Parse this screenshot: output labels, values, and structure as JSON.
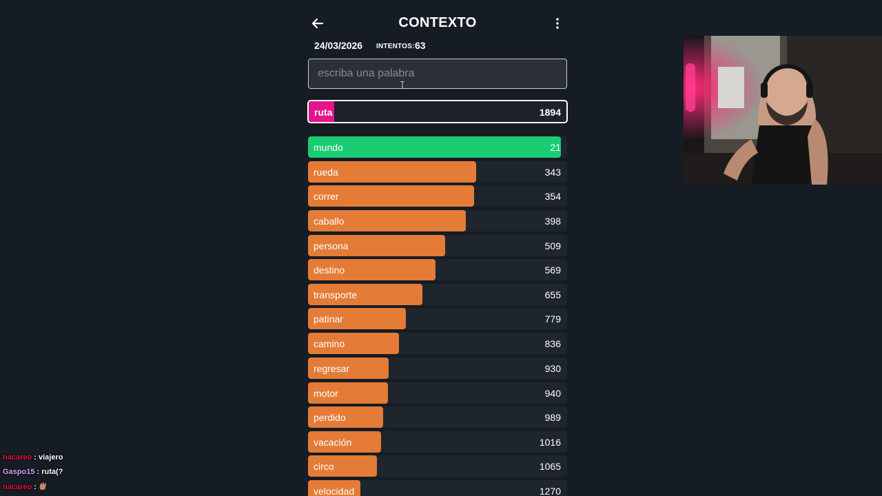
{
  "header": {
    "title": "CONTEXTO",
    "back_icon": "arrow-left-icon",
    "menu_icon": "kebab-menu-icon"
  },
  "game_info": {
    "date": "24/03/2026",
    "attempts_label": "INTENTOS:",
    "attempts_value": "63"
  },
  "input": {
    "value": "",
    "placeholder": "escriba una palabra"
  },
  "current_guess": {
    "word": "ruta",
    "rank": "1894",
    "color": "#e5148a",
    "fill": 0.1
  },
  "colors": {
    "green": "#19cc72",
    "orange": "#e47b36",
    "pink": "#e5148a",
    "background": "#161c24",
    "row_background": "#1f252d"
  },
  "guesses": [
    {
      "word": "mundo",
      "rank": "21",
      "tier": "green",
      "fill": 0.976
    },
    {
      "word": "rueda",
      "rank": "343",
      "tier": "orange",
      "fill": 0.649
    },
    {
      "word": "correr",
      "rank": "354",
      "tier": "orange",
      "fill": 0.641
    },
    {
      "word": "caballo",
      "rank": "398",
      "tier": "orange",
      "fill": 0.608
    },
    {
      "word": "persona",
      "rank": "509",
      "tier": "orange",
      "fill": 0.529
    },
    {
      "word": "destino",
      "rank": "569",
      "tier": "orange",
      "fill": 0.492
    },
    {
      "word": "transporte",
      "rank": "655",
      "tier": "orange",
      "fill": 0.441
    },
    {
      "word": "patinar",
      "rank": "779",
      "tier": "orange",
      "fill": 0.378
    },
    {
      "word": "camino",
      "rank": "836",
      "tier": "orange",
      "fill": 0.35
    },
    {
      "word": "regresar",
      "rank": "930",
      "tier": "orange",
      "fill": 0.311
    },
    {
      "word": "motor",
      "rank": "940",
      "tier": "orange",
      "fill": 0.309
    },
    {
      "word": "perdido",
      "rank": "989",
      "tier": "orange",
      "fill": 0.291
    },
    {
      "word": "vacación",
      "rank": "1016",
      "tier": "orange",
      "fill": 0.281
    },
    {
      "word": "circo",
      "rank": "1065",
      "tier": "orange",
      "fill": 0.266
    },
    {
      "word": "velocidad",
      "rank": "1270",
      "tier": "orange",
      "fill": 0.202
    }
  ],
  "chat": [
    {
      "user": "nacareo",
      "separator": " : ",
      "message": "viajero",
      "user_color": "#e8103a"
    },
    {
      "user": "Gaspo15",
      "separator": " : ",
      "message": "ruta(?",
      "user_color": "#d9a3ff"
    },
    {
      "user": "nacareo",
      "separator": " : ",
      "message": "",
      "user_color": "#e8103a",
      "emote": "hand-emote-icon"
    }
  ]
}
